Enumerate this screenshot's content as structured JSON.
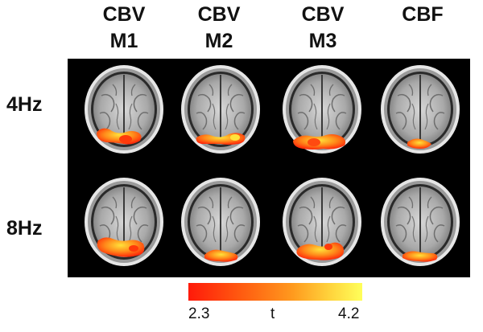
{
  "columns": [
    {
      "line1": "CBV",
      "line2": "M1"
    },
    {
      "line1": "CBV",
      "line2": "M2"
    },
    {
      "line1": "CBV",
      "line2": "M3"
    },
    {
      "line1": "CBF",
      "line2": ""
    }
  ],
  "rows": [
    "4Hz",
    "8Hz"
  ],
  "colorbar": {
    "min_label": "2.3",
    "variable_label": "t",
    "max_label": "4.2",
    "color_low": "#ff1a0a",
    "color_high": "#ffff5a"
  }
}
